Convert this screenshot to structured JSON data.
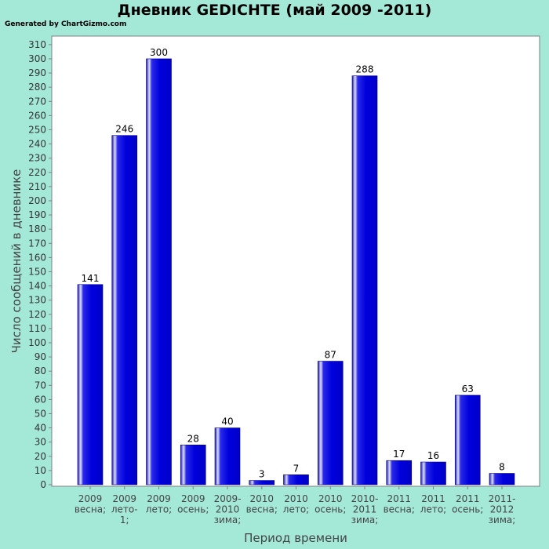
{
  "page": {
    "title": "Дневник GEDICHTE (май 2009 -2011)",
    "credit": "Generated by ChartGizmo.com"
  },
  "chart_data": {
    "type": "bar",
    "title": "Дневник GEDICHTE (май 2009 -2011)",
    "xlabel": "Период времени",
    "ylabel": "Число сообщений в дневнике",
    "ylim": [
      0,
      316
    ],
    "ytick_step": 10,
    "grid": false,
    "legend": "none",
    "categories": [
      [
        "2009",
        "весна;"
      ],
      [
        "2009",
        "лето-",
        "1;"
      ],
      [
        "2009",
        "лето;"
      ],
      [
        "2009",
        "осень;"
      ],
      [
        "2009-",
        "2010",
        "зима;"
      ],
      [
        "2010",
        "весна;"
      ],
      [
        "2010",
        "лето;"
      ],
      [
        "2010",
        "осень;"
      ],
      [
        "2010-",
        "2011",
        "зима;"
      ],
      [
        "2011",
        "весна;"
      ],
      [
        "2011",
        "лето;"
      ],
      [
        "2011",
        "осень;"
      ],
      [
        "2011-",
        "2012",
        "зима;"
      ]
    ],
    "values": [
      141,
      246,
      300,
      28,
      40,
      3,
      7,
      87,
      288,
      17,
      16,
      63,
      8
    ],
    "colors": {
      "bar": "#0000dd",
      "bar_highlight": "#e0e0ff",
      "bar_dark": "#000080",
      "plot_bg": "#ffffff",
      "page_bg": "#a4e9d8",
      "axis": "#808080"
    }
  }
}
